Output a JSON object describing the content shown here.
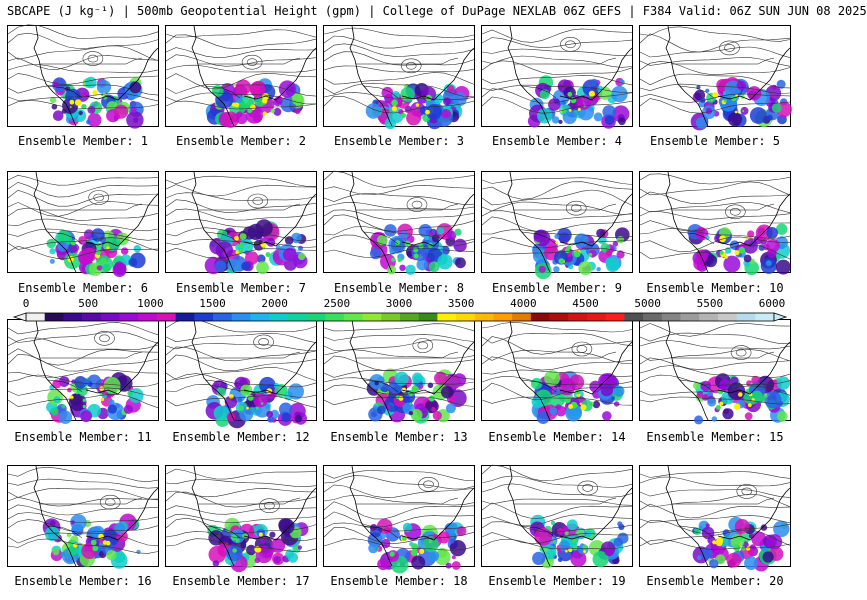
{
  "header": {
    "title": "SBCAPE (J kg⁻¹) | 500mb Geopotential Height (gpm) | College of DuPage NEXLAB 06Z GEFS | F384 Valid: 06Z SUN JUN 08 2025"
  },
  "panels": [
    {
      "label": "Ensemble Member: 1"
    },
    {
      "label": "Ensemble Member: 2"
    },
    {
      "label": "Ensemble Member: 3"
    },
    {
      "label": "Ensemble Member: 4"
    },
    {
      "label": "Ensemble Member: 5"
    },
    {
      "label": "Ensemble Member: 6"
    },
    {
      "label": "Ensemble Member: 7"
    },
    {
      "label": "Ensemble Member: 8"
    },
    {
      "label": "Ensemble Member: 9"
    },
    {
      "label": "Ensemble Member: 10"
    },
    {
      "label": "Ensemble Member: 11"
    },
    {
      "label": "Ensemble Member: 12"
    },
    {
      "label": "Ensemble Member: 13"
    },
    {
      "label": "Ensemble Member: 14"
    },
    {
      "label": "Ensemble Member: 15"
    },
    {
      "label": "Ensemble Member: 16"
    },
    {
      "label": "Ensemble Member: 17"
    },
    {
      "label": "Ensemble Member: 18"
    },
    {
      "label": "Ensemble Member: 19"
    },
    {
      "label": "Ensemble Member: 20"
    }
  ],
  "colorbar": {
    "ticks": [
      "0",
      "500",
      "1000",
      "1500",
      "2000",
      "2500",
      "3000",
      "3500",
      "4000",
      "4500",
      "5000",
      "5500",
      "6000"
    ],
    "colors": [
      "#f0f0f0",
      "#2a0a55",
      "#3c0a8c",
      "#5a0aa8",
      "#7a0ac8",
      "#9a0ad8",
      "#c00ad0",
      "#d810b8",
      "#141c9c",
      "#1c3cd4",
      "#2a64e6",
      "#2c8ef0",
      "#20b4ee",
      "#10cccc",
      "#10d2a0",
      "#18d676",
      "#38e05a",
      "#62e84a",
      "#90e832",
      "#78c828",
      "#56a822",
      "#3a8a1a",
      "#fff000",
      "#ffd800",
      "#ffba00",
      "#ff9c00",
      "#e07c00",
      "#8c0a0a",
      "#b00e0e",
      "#d41414",
      "#e81818",
      "#ff1e1e",
      "#505050",
      "#6a6a6a",
      "#848484",
      "#9c9c9c",
      "#b4b4b4",
      "#c8c8c8",
      "#b4dcec",
      "#c8ecf6"
    ]
  }
}
